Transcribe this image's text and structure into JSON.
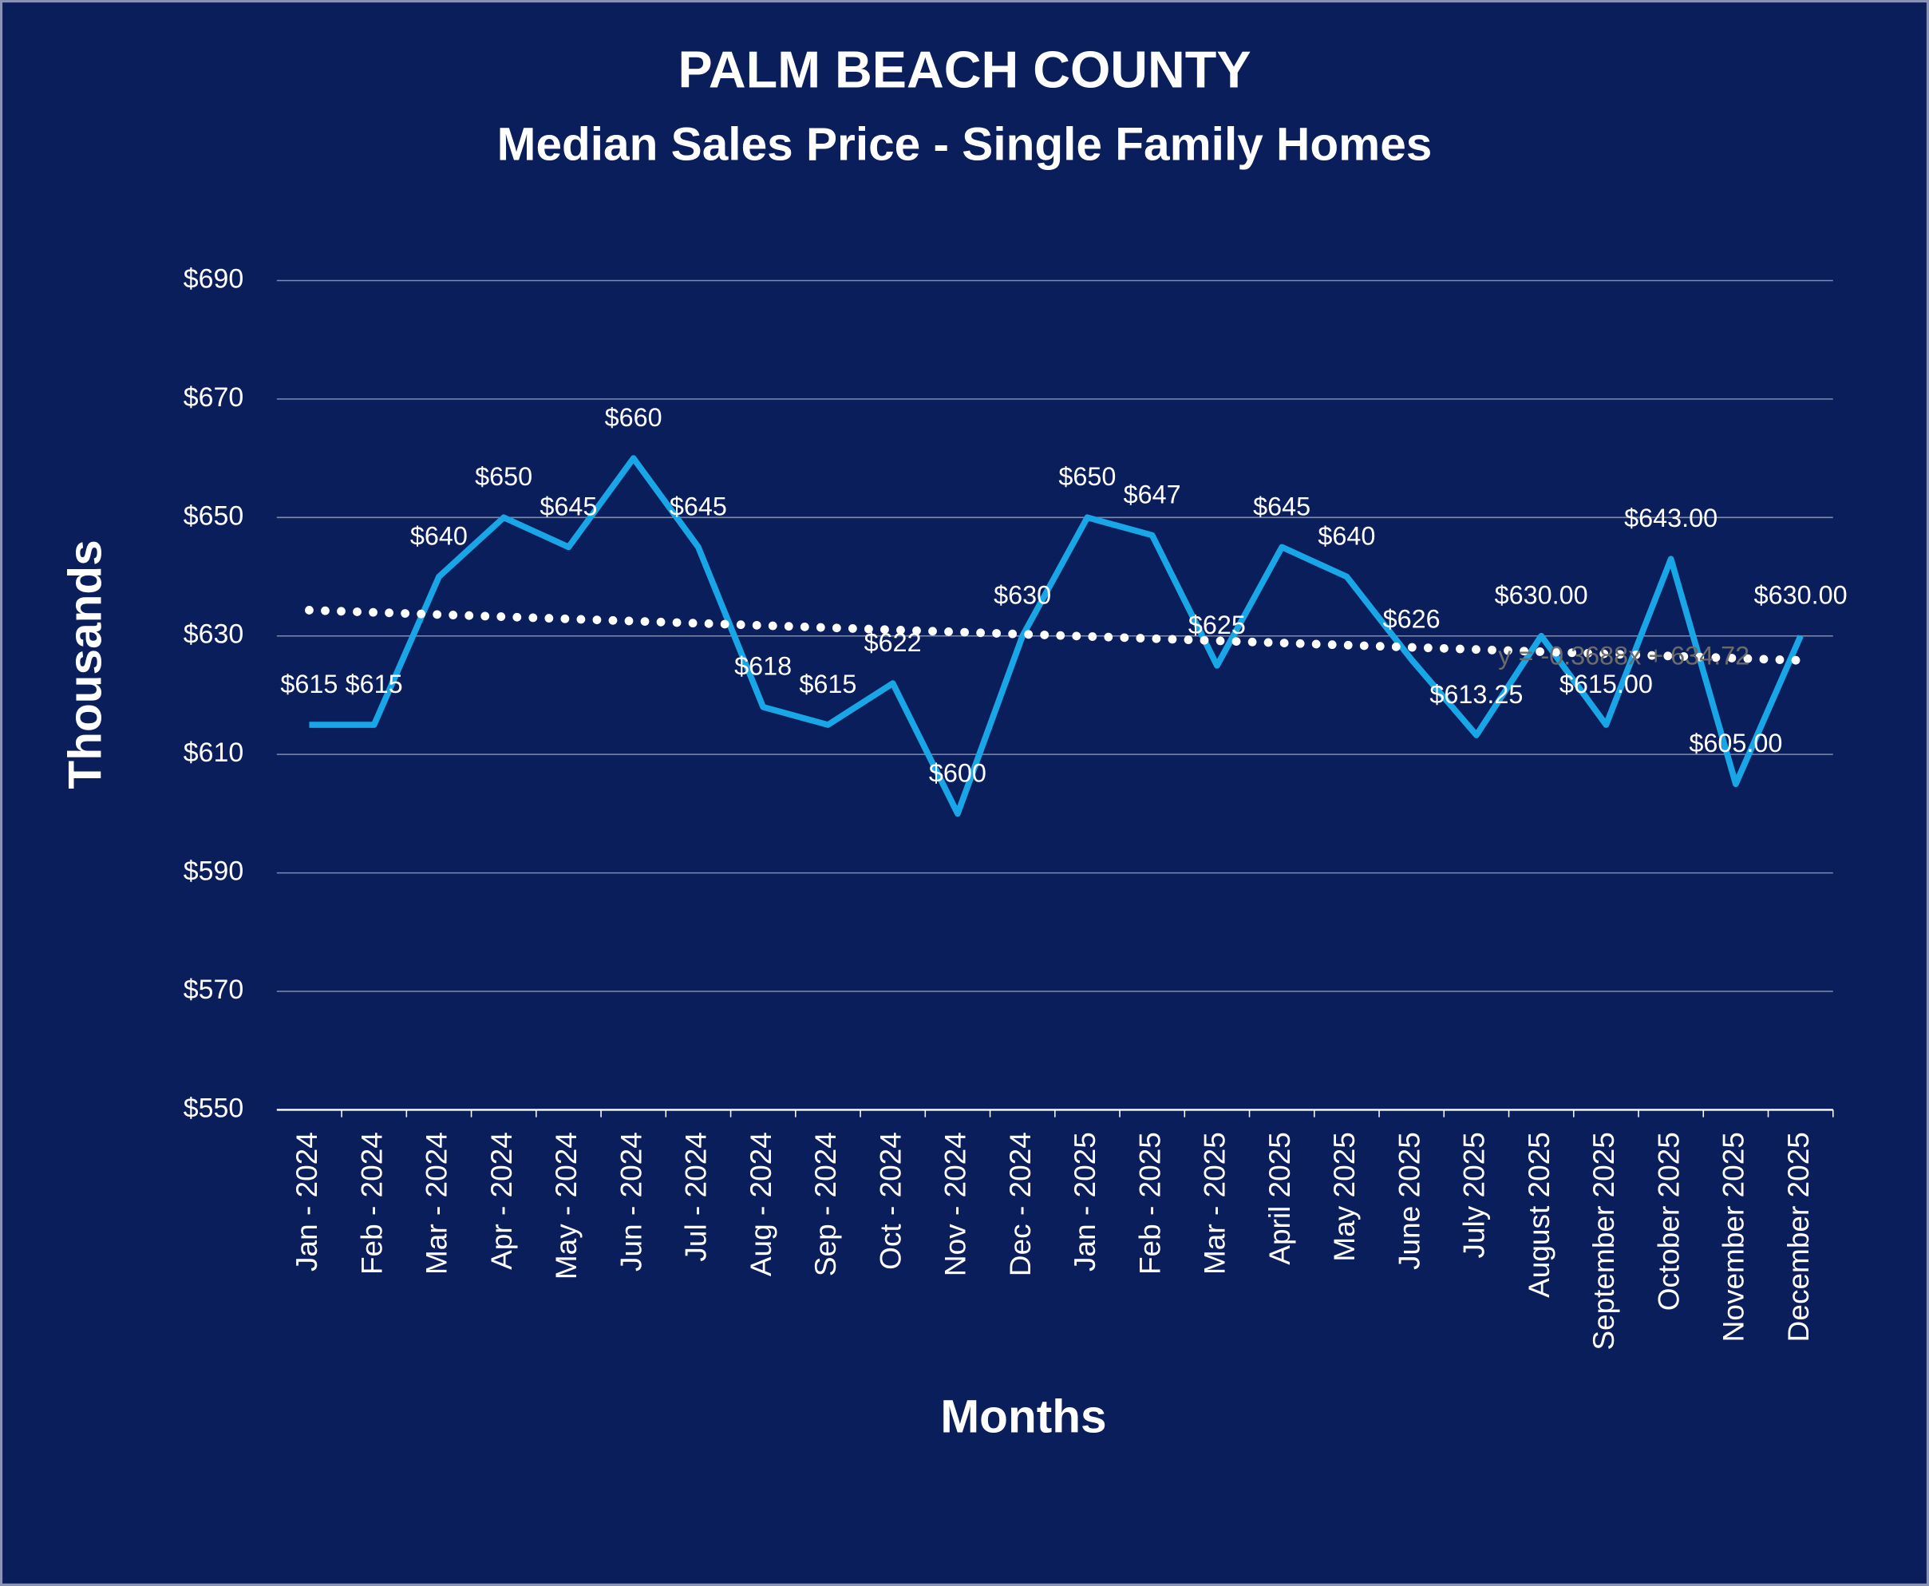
{
  "chart_data": {
    "type": "line",
    "title": "PALM BEACH COUNTY",
    "subtitle": "Median Sales Price - Single Family Homes",
    "y_axis_label": "Thousands",
    "x_axis_label": "Months",
    "categories": [
      "Jan - 2024",
      "Feb - 2024",
      "Mar - 2024",
      "Apr - 2024",
      "May - 2024",
      "Jun - 2024",
      "Jul - 2024",
      "Aug - 2024",
      "Sep - 2024",
      "Oct - 2024",
      "Nov - 2024",
      "Dec - 2024",
      "Jan - 2025",
      "Feb - 2025",
      "Mar - 2025",
      "April 2025",
      "May 2025",
      "June 2025",
      "July 2025",
      "August 2025",
      "September 2025",
      "October 2025",
      "November 2025",
      "December 2025"
    ],
    "values": [
      615,
      615,
      640,
      650,
      645,
      660,
      645,
      618,
      615,
      622,
      600,
      630,
      650,
      647,
      625,
      645,
      640,
      626,
      613.25,
      630,
      615,
      643,
      605,
      630
    ],
    "value_labels": [
      "$615",
      "$615",
      "$640",
      "$650",
      "$645",
      "$660",
      "$645",
      "$618",
      "$615",
      "$622",
      "$600",
      "$630",
      "$650",
      "$647",
      "$625",
      "$645",
      "$640",
      "$626",
      "$613.25",
      "$630.00",
      "$615.00",
      "$643.00",
      "$605.00",
      "$630.00"
    ],
    "color": "#19a6e6",
    "ylim": [
      550,
      690
    ],
    "yticks": [
      {
        "value": 550,
        "label": "$550"
      },
      {
        "value": 570,
        "label": "$570"
      },
      {
        "value": 590,
        "label": "$590"
      },
      {
        "value": 610,
        "label": "$610"
      },
      {
        "value": 630,
        "label": "$630"
      },
      {
        "value": 650,
        "label": "$650"
      },
      {
        "value": 670,
        "label": "$670"
      },
      {
        "value": 690,
        "label": "$690"
      }
    ],
    "grid": true,
    "trendline": {
      "slope": -0.3688,
      "intercept": 634.72,
      "label": "y = -0.3688x + 634.72"
    }
  }
}
